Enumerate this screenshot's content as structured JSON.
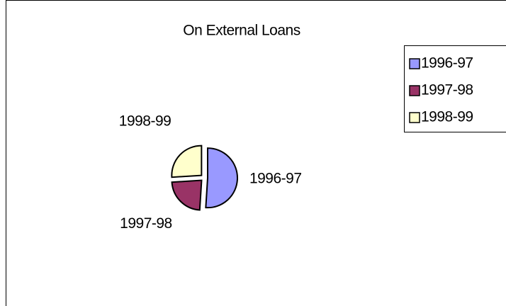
{
  "chart_data": {
    "type": "pie",
    "title": "On External Loans",
    "categories": [
      "1996-97",
      "1997-98",
      "1998-99"
    ],
    "values": [
      51,
      23,
      26
    ],
    "colors": [
      "#9999ff",
      "#993366",
      "#ffffcc"
    ],
    "legend": "right"
  }
}
